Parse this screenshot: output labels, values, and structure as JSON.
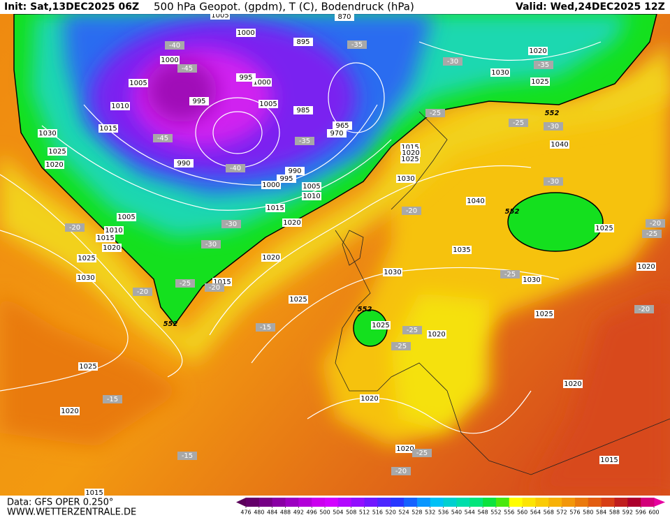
{
  "header": {
    "init": "Init: Sat,13DEC2025 06Z",
    "title": "500 hPa Geopot. (gpdm), T (C), Bodendruck (hPa)",
    "valid": "Valid: Wed,24DEC2025 12Z"
  },
  "footer": {
    "data": "Data: GFS OPER 0.250°",
    "site": "WWW.WETTERZENTRALE.DE"
  },
  "legend": {
    "levels": [
      476,
      480,
      484,
      488,
      492,
      496,
      500,
      504,
      508,
      512,
      516,
      520,
      524,
      528,
      532,
      536,
      540,
      544,
      548,
      552,
      556,
      560,
      564,
      568,
      572,
      576,
      580,
      584,
      588,
      592,
      596,
      600
    ]
  },
  "map": {
    "pressure_labels": [
      1005,
      870,
      1000,
      895,
      1000,
      1005,
      1000,
      995,
      995,
      1010,
      1005,
      985,
      965,
      970,
      1015,
      1030,
      1025,
      1020,
      990,
      990,
      995,
      1000,
      1005,
      1010,
      1015,
      1020,
      1005,
      1010,
      1015,
      1020,
      1025,
      1030,
      1020,
      1015,
      1025,
      1030,
      1035,
      1040,
      1030,
      1015,
      1020,
      1025,
      1020,
      1030,
      1025,
      1040,
      1025,
      1020,
      1030,
      1025,
      1020,
      1025,
      1025,
      1020,
      1020,
      1020,
      1020,
      1015,
      1015
    ],
    "temperature_labels": [
      -40,
      -45,
      -35,
      -30,
      -35,
      -25,
      -25,
      -30,
      -45,
      -35,
      -40,
      -30,
      -20,
      -20,
      -30,
      -30,
      -25,
      -20,
      -20,
      -25,
      -20,
      -15,
      -25,
      -25,
      -15,
      -15,
      -25,
      -20,
      -20,
      -25
    ],
    "geopotential_labels": [
      552,
      552,
      552,
      552
    ]
  }
}
